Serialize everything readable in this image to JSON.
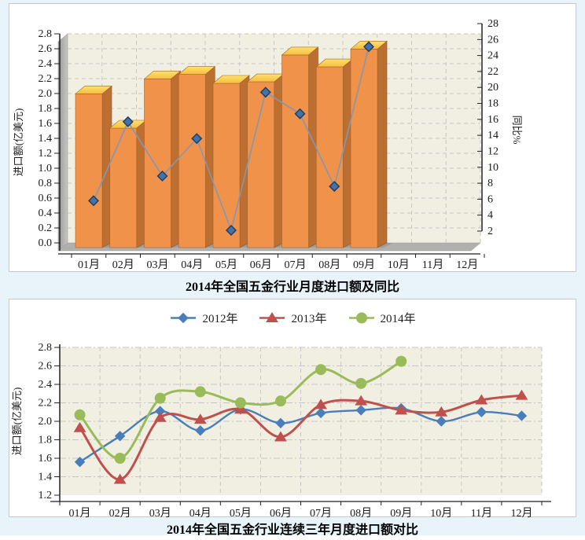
{
  "page": {
    "background_color": "#E8F4F9",
    "panel_background": "#FFFFFF",
    "panel_border_color": "#C9C9C9"
  },
  "chart_data": [
    {
      "type": "bar",
      "style": "3d-bar-with-line-overlay",
      "title": "2014年全国五金行业月度进口额及同比",
      "categories": [
        "01月",
        "02月",
        "03月",
        "04月",
        "05月",
        "06月",
        "07月",
        "08月",
        "09月",
        "10月",
        "11月",
        "12月"
      ],
      "series": [
        {
          "name": "进口额",
          "type": "bar",
          "axis": "left",
          "values": [
            2.06,
            1.6,
            2.26,
            2.32,
            2.2,
            2.22,
            2.58,
            2.42,
            2.66,
            null,
            null,
            null
          ],
          "color_front": "#F0924A",
          "color_side": "#BC6F30",
          "color_top": "#FDCE4E"
        },
        {
          "name": "同比",
          "type": "line",
          "axis": "right",
          "marker": "diamond",
          "values": [
            5.8,
            15.7,
            8.9,
            13.6,
            2.1,
            19.4,
            16.7,
            7.6,
            25.1,
            null,
            null,
            null
          ],
          "color": "#8496B5",
          "marker_fill": "#4273A8",
          "marker_stroke": "#1E3A5F"
        }
      ],
      "ylabel_left": "进口额(亿美元)",
      "ylabel_right": "同比%",
      "ylim_left": [
        0.0,
        2.8
      ],
      "ytick_left": 0.2,
      "ylim_right": [
        2,
        28
      ],
      "ytick_right": 2,
      "grid": true,
      "plot_bg": "#F0EFE2",
      "grid_color": "#C6C6C6",
      "legend_position": "none"
    },
    {
      "type": "line",
      "style": "smooth-line",
      "title": "2014年全国五金行业连续三年月度进口额对比",
      "categories": [
        "01月",
        "02月",
        "03月",
        "04月",
        "05月",
        "06月",
        "07月",
        "08月",
        "09月",
        "10月",
        "11月",
        "12月"
      ],
      "series": [
        {
          "name": "2012年",
          "marker": "diamond",
          "color": "#4A7EBB",
          "values": [
            1.56,
            1.84,
            2.11,
            1.9,
            2.13,
            1.98,
            2.09,
            2.12,
            2.14,
            2.0,
            2.1,
            2.06
          ]
        },
        {
          "name": "2013年",
          "marker": "triangle",
          "color": "#C0504D",
          "values": [
            1.93,
            1.37,
            2.04,
            2.02,
            2.13,
            1.83,
            2.18,
            2.22,
            2.12,
            2.1,
            2.23,
            2.28
          ]
        },
        {
          "name": "2014年",
          "marker": "circle",
          "color": "#9ABB59",
          "values": [
            2.07,
            1.6,
            2.25,
            2.32,
            2.2,
            2.22,
            2.56,
            2.41,
            2.65,
            null,
            null,
            null
          ]
        }
      ],
      "ylabel": "进口额(亿美元)",
      "ylim": [
        1.2,
        2.8
      ],
      "ytick": 0.2,
      "grid": true,
      "plot_bg": "#F0EFE2",
      "grid_color": "#C6C6C6",
      "legend_position": "top"
    }
  ]
}
